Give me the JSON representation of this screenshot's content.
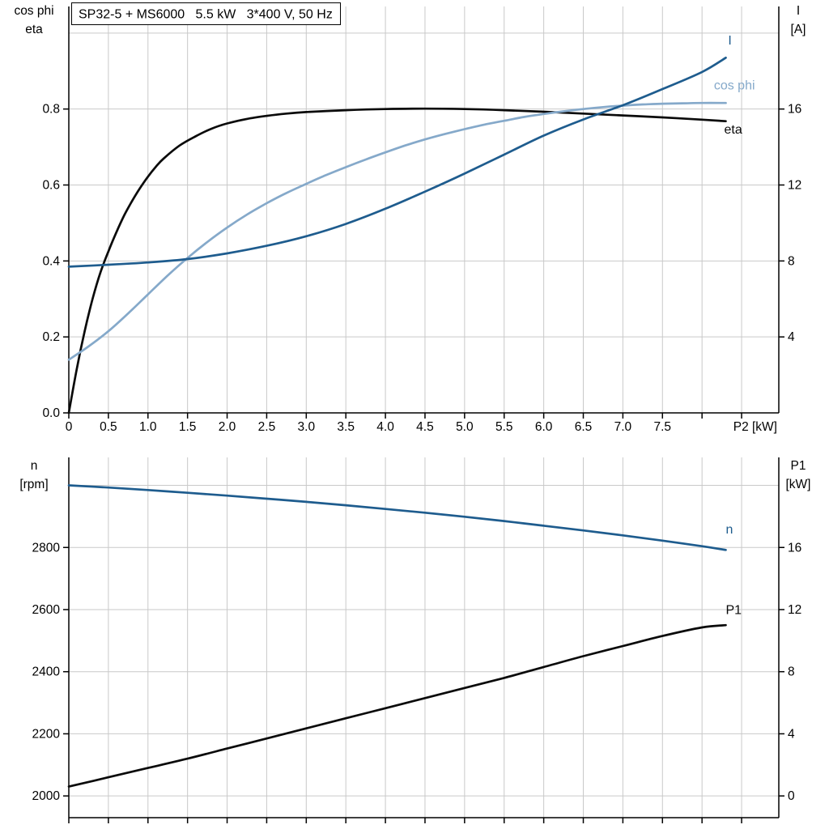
{
  "theme": {
    "background": "#ffffff",
    "grid": "#c9c9c9",
    "axis": "#000000",
    "text": "#000000",
    "dark_blue": "#1e5c8e",
    "light_blue": "#85a9ca",
    "black_curve": "#0a0a0a"
  },
  "chart_data": [
    {
      "id": "upper",
      "type": "line",
      "title": "SP32-5 + MS6000   5.5 kW   3*400 V, 50 Hz",
      "x_axis": {
        "label": "P2 [kW]",
        "min": 0,
        "max": 8.97,
        "grid_step": 0.5,
        "tick_values": [
          0,
          0.5,
          1.0,
          1.5,
          2.0,
          2.5,
          3.0,
          3.5,
          4.0,
          4.5,
          5.0,
          5.5,
          6.0,
          6.5,
          7.0,
          7.5
        ],
        "tick_labels": [
          "0",
          "0.5",
          "1.0",
          "1.5",
          "2.0",
          "2.5",
          "3.0",
          "3.5",
          "4.0",
          "4.5",
          "5.0",
          "5.5",
          "6.0",
          "6.5",
          "7.0",
          "7.5"
        ]
      },
      "y_left": {
        "label_lines": [
          "cos phi",
          "eta"
        ],
        "min": 0,
        "max": 1.07,
        "tick_values": [
          0.0,
          0.2,
          0.4,
          0.6,
          0.8
        ],
        "tick_labels": [
          "0.0",
          "0.2",
          "0.4",
          "0.6",
          "0.8"
        ],
        "grid_values": [
          0.2,
          0.4,
          0.6,
          0.8,
          1.0
        ]
      },
      "y_right": {
        "label_lines": [
          "I",
          "[A]"
        ],
        "min": 0,
        "max": 21.4,
        "tick_values": [
          4,
          8,
          12,
          16
        ],
        "tick_labels": [
          "4",
          "8",
          "12",
          "16"
        ]
      },
      "series": [
        {
          "id": "eta",
          "name": "eta",
          "axis": "left",
          "color": "#0a0a0a",
          "label": {
            "text": "eta",
            "x": 8.28,
            "y": 0.735
          },
          "points": [
            [
              0,
              0
            ],
            [
              0.1,
              0.115
            ],
            [
              0.2,
              0.215
            ],
            [
              0.3,
              0.3
            ],
            [
              0.4,
              0.37
            ],
            [
              0.5,
              0.425
            ],
            [
              0.6,
              0.475
            ],
            [
              0.7,
              0.52
            ],
            [
              0.8,
              0.558
            ],
            [
              0.9,
              0.592
            ],
            [
              1.0,
              0.622
            ],
            [
              1.1,
              0.648
            ],
            [
              1.2,
              0.67
            ],
            [
              1.4,
              0.704
            ],
            [
              1.6,
              0.728
            ],
            [
              1.8,
              0.748
            ],
            [
              2.0,
              0.762
            ],
            [
              2.25,
              0.774
            ],
            [
              2.5,
              0.782
            ],
            [
              2.75,
              0.788
            ],
            [
              3.0,
              0.792
            ],
            [
              3.5,
              0.797
            ],
            [
              4.0,
              0.8
            ],
            [
              4.5,
              0.801
            ],
            [
              5.0,
              0.8
            ],
            [
              5.5,
              0.797
            ],
            [
              6.0,
              0.793
            ],
            [
              6.5,
              0.788
            ],
            [
              7.0,
              0.783
            ],
            [
              7.5,
              0.778
            ],
            [
              8.0,
              0.772
            ],
            [
              8.3,
              0.768
            ]
          ]
        },
        {
          "id": "cos-phi",
          "name": "cos phi",
          "axis": "left",
          "color": "#85a9ca",
          "label": {
            "text": "cos phi",
            "x": 8.15,
            "y": 0.852
          },
          "points": [
            [
              0,
              0.14
            ],
            [
              0.25,
              0.175
            ],
            [
              0.5,
              0.215
            ],
            [
              0.75,
              0.262
            ],
            [
              1.0,
              0.312
            ],
            [
              1.25,
              0.362
            ],
            [
              1.5,
              0.408
            ],
            [
              1.75,
              0.45
            ],
            [
              2.0,
              0.488
            ],
            [
              2.25,
              0.522
            ],
            [
              2.5,
              0.552
            ],
            [
              2.75,
              0.579
            ],
            [
              3.0,
              0.603
            ],
            [
              3.25,
              0.626
            ],
            [
              3.5,
              0.647
            ],
            [
              3.75,
              0.667
            ],
            [
              4.0,
              0.686
            ],
            [
              4.25,
              0.704
            ],
            [
              4.5,
              0.72
            ],
            [
              4.75,
              0.734
            ],
            [
              5.0,
              0.747
            ],
            [
              5.25,
              0.759
            ],
            [
              5.5,
              0.769
            ],
            [
              5.75,
              0.779
            ],
            [
              6.0,
              0.787
            ],
            [
              6.25,
              0.794
            ],
            [
              6.5,
              0.8
            ],
            [
              6.75,
              0.805
            ],
            [
              7.0,
              0.809
            ],
            [
              7.25,
              0.812
            ],
            [
              7.5,
              0.814
            ],
            [
              7.75,
              0.815
            ],
            [
              8.0,
              0.816
            ],
            [
              8.3,
              0.816
            ]
          ]
        },
        {
          "id": "current",
          "name": "I",
          "axis": "right",
          "color": "#1e5c8e",
          "label": {
            "text": "I",
            "x": 8.33,
            "y": 19.4
          },
          "points": [
            [
              0,
              7.7
            ],
            [
              0.5,
              7.8
            ],
            [
              1.0,
              7.92
            ],
            [
              1.5,
              8.1
            ],
            [
              2.0,
              8.4
            ],
            [
              2.5,
              8.8
            ],
            [
              3.0,
              9.3
            ],
            [
              3.5,
              9.95
            ],
            [
              4.0,
              10.75
            ],
            [
              4.5,
              11.65
            ],
            [
              5.0,
              12.6
            ],
            [
              5.5,
              13.6
            ],
            [
              6.0,
              14.6
            ],
            [
              6.5,
              15.45
            ],
            [
              7.0,
              16.2
            ],
            [
              7.5,
              17.05
            ],
            [
              8.0,
              17.95
            ],
            [
              8.3,
              18.7
            ]
          ]
        }
      ]
    },
    {
      "id": "lower",
      "type": "line",
      "x_axis": {
        "min": 0,
        "max": 8.97,
        "grid_step": 0.5,
        "tick_values": [],
        "tick_labels": null
      },
      "y_left": {
        "label_lines": [
          "n",
          "[rpm]"
        ],
        "min": 1930,
        "max": 3090,
        "tick_values": [
          2000,
          2200,
          2400,
          2600,
          2800
        ],
        "tick_labels": [
          "2000",
          "2200",
          "2400",
          "2600",
          "2800"
        ],
        "grid_values": [
          2000,
          2200,
          2400,
          2600,
          2800,
          3000
        ]
      },
      "y_right": {
        "label_lines": [
          "P1",
          "[kW]"
        ],
        "min": -1.4,
        "max": 21.8,
        "tick_values": [
          0,
          4,
          8,
          12,
          16
        ],
        "tick_labels": [
          "0",
          "4",
          "8",
          "12",
          "16"
        ]
      },
      "series": [
        {
          "id": "speed",
          "name": "n",
          "axis": "left",
          "color": "#1e5c8e",
          "label": {
            "text": "n",
            "x": 8.3,
            "y": 2845
          },
          "points": [
            [
              0,
              3000
            ],
            [
              0.5,
              2993
            ],
            [
              1.0,
              2985
            ],
            [
              1.5,
              2976
            ],
            [
              2.0,
              2967
            ],
            [
              2.5,
              2957
            ],
            [
              3.0,
              2947
            ],
            [
              3.5,
              2936
            ],
            [
              4.0,
              2924
            ],
            [
              4.5,
              2912
            ],
            [
              5.0,
              2899
            ],
            [
              5.5,
              2885
            ],
            [
              6.0,
              2870
            ],
            [
              6.5,
              2855
            ],
            [
              7.0,
              2839
            ],
            [
              7.5,
              2822
            ],
            [
              8.0,
              2804
            ],
            [
              8.3,
              2792
            ]
          ]
        },
        {
          "id": "p1",
          "name": "P1",
          "axis": "right",
          "color": "#0a0a0a",
          "label": {
            "text": "P1",
            "x": 8.3,
            "y": 11.7
          },
          "points": [
            [
              0,
              0.6
            ],
            [
              0.5,
              1.2
            ],
            [
              1.0,
              1.8
            ],
            [
              1.5,
              2.4
            ],
            [
              2.0,
              3.05
            ],
            [
              2.5,
              3.7
            ],
            [
              3.0,
              4.35
            ],
            [
              3.5,
              5.0
            ],
            [
              4.0,
              5.65
            ],
            [
              4.5,
              6.3
            ],
            [
              5.0,
              6.95
            ],
            [
              5.5,
              7.6
            ],
            [
              6.0,
              8.3
            ],
            [
              6.5,
              9.0
            ],
            [
              7.0,
              9.65
            ],
            [
              7.5,
              10.3
            ],
            [
              8.0,
              10.85
            ],
            [
              8.3,
              11.0
            ]
          ]
        }
      ]
    }
  ]
}
